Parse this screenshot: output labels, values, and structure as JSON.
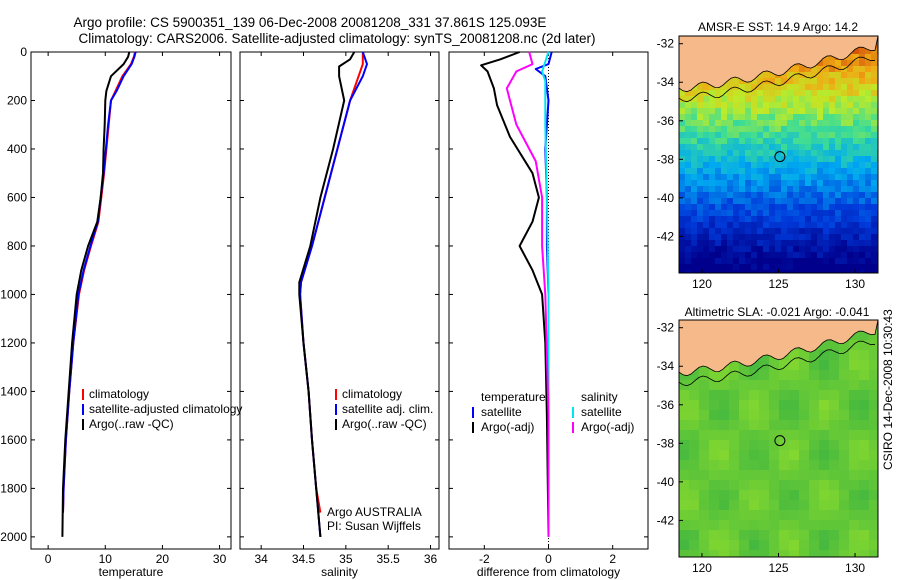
{
  "header": {
    "line1": "Argo profile: CS 5900351_139 06-Dec-2008 20081208_331 37.861S 125.093E",
    "line2": "Climatology: CARS2006. Satellite-adjusted climatology: synTS_20081208.nc (2d later)"
  },
  "side_label": "CSIRO 14-Dec-2008 10:30:43",
  "chart_data": [
    {
      "type": "line",
      "xlabel": "temperature",
      "xlim": [
        -3,
        32
      ],
      "ylim": [
        2050,
        0
      ],
      "x_ticks": [
        "0",
        "10",
        "20",
        "30"
      ],
      "y_ticks": [
        "0",
        "200",
        "400",
        "600",
        "800",
        "1000",
        "1200",
        "1400",
        "1600",
        "1800",
        "2000"
      ],
      "legend": [
        "climatology",
        "satellite-adjusted climatology",
        "Argo(..raw -QC)"
      ],
      "series": [
        {
          "name": "climatology",
          "color": "#ff0000",
          "points": [
            [
              15.2,
              0
            ],
            [
              15.0,
              20
            ],
            [
              14.5,
              50
            ],
            [
              13.0,
              100
            ],
            [
              11.8,
              160
            ],
            [
              11.0,
              200
            ],
            [
              10.6,
              300
            ],
            [
              10.2,
              400
            ],
            [
              9.8,
              500
            ],
            [
              9.3,
              600
            ],
            [
              8.8,
              700
            ],
            [
              7.5,
              800
            ],
            [
              6.3,
              900
            ],
            [
              5.4,
              1000
            ],
            [
              4.4,
              1200
            ],
            [
              3.7,
              1400
            ],
            [
              3.1,
              1600
            ],
            [
              2.7,
              1800
            ],
            [
              2.6,
              1900
            ]
          ]
        },
        {
          "name": "satellite-adjusted climatology",
          "color": "#0000ff",
          "points": [
            [
              15.3,
              0
            ],
            [
              15.1,
              20
            ],
            [
              14.6,
              50
            ],
            [
              13.2,
              100
            ],
            [
              12.0,
              160
            ],
            [
              11.0,
              200
            ],
            [
              10.5,
              300
            ],
            [
              10.1,
              400
            ],
            [
              9.7,
              500
            ],
            [
              9.2,
              600
            ],
            [
              8.7,
              700
            ],
            [
              7.4,
              800
            ],
            [
              6.2,
              900
            ],
            [
              5.3,
              1000
            ],
            [
              4.4,
              1200
            ],
            [
              3.7,
              1400
            ],
            [
              3.1,
              1600
            ],
            [
              2.7,
              1800
            ],
            [
              2.6,
              1900
            ]
          ]
        },
        {
          "name": "Argo(..raw -QC)",
          "color": "#000000",
          "points": [
            [
              14.2,
              0
            ],
            [
              14.0,
              20
            ],
            [
              13.2,
              50
            ],
            [
              11.0,
              100
            ],
            [
              10.2,
              160
            ],
            [
              10.0,
              200
            ],
            [
              9.9,
              300
            ],
            [
              9.7,
              400
            ],
            [
              9.6,
              500
            ],
            [
              9.2,
              600
            ],
            [
              8.6,
              700
            ],
            [
              7.0,
              800
            ],
            [
              5.8,
              900
            ],
            [
              5.0,
              1000
            ],
            [
              4.2,
              1200
            ],
            [
              3.6,
              1400
            ],
            [
              3.0,
              1600
            ],
            [
              2.6,
              1800
            ],
            [
              2.5,
              2000
            ]
          ]
        }
      ]
    },
    {
      "type": "line",
      "xlabel": "salinity",
      "xlim": [
        33.75,
        36.1
      ],
      "ylim": [
        2050,
        0
      ],
      "x_ticks": [
        "34",
        "34.5",
        "35",
        "35.5",
        "36"
      ],
      "legend": [
        "climatology",
        "satellite adj. clim.",
        "Argo(..raw -QC)"
      ],
      "annotation": [
        "Argo AUSTRALIA",
        "PI: Susan Wijffels"
      ],
      "series": [
        {
          "name": "climatology",
          "color": "#ff0000",
          "points": [
            [
              35.2,
              0
            ],
            [
              35.2,
              50
            ],
            [
              35.15,
              100
            ],
            [
              35.05,
              200
            ],
            [
              34.9,
              400
            ],
            [
              34.75,
              600
            ],
            [
              34.6,
              800
            ],
            [
              34.47,
              950
            ],
            [
              34.46,
              1000
            ],
            [
              34.5,
              1200
            ],
            [
              34.56,
              1400
            ],
            [
              34.6,
              1600
            ],
            [
              34.65,
              1800
            ],
            [
              34.7,
              1900
            ]
          ]
        },
        {
          "name": "satellite adj. clim.",
          "color": "#0000ff",
          "points": [
            [
              35.2,
              0
            ],
            [
              35.25,
              50
            ],
            [
              35.2,
              100
            ],
            [
              35.05,
              200
            ],
            [
              34.9,
              400
            ],
            [
              34.75,
              600
            ],
            [
              34.6,
              800
            ],
            [
              34.47,
              950
            ],
            [
              34.46,
              1000
            ],
            [
              34.5,
              1200
            ],
            [
              34.56,
              1400
            ],
            [
              34.6,
              1600
            ],
            [
              34.65,
              1800
            ],
            [
              34.7,
              2000
            ]
          ]
        },
        {
          "name": "Argo(..raw -QC)",
          "color": "#000000",
          "points": [
            [
              35.1,
              0
            ],
            [
              35.05,
              30
            ],
            [
              34.92,
              60
            ],
            [
              34.92,
              100
            ],
            [
              34.98,
              200
            ],
            [
              34.85,
              400
            ],
            [
              34.7,
              600
            ],
            [
              34.58,
              800
            ],
            [
              34.45,
              950
            ],
            [
              34.45,
              1000
            ],
            [
              34.5,
              1200
            ],
            [
              34.56,
              1400
            ],
            [
              34.6,
              1600
            ],
            [
              34.65,
              1800
            ],
            [
              34.7,
              2000
            ]
          ]
        }
      ]
    },
    {
      "type": "line",
      "xlabel": "difference from climatology",
      "xlim": [
        -3.1,
        3.1
      ],
      "ylim": [
        2050,
        0
      ],
      "x_ticks": [
        "-2",
        "0",
        "2"
      ],
      "legend_groups": [
        {
          "heading": "temperature",
          "items": [
            "satellite",
            "Argo(-adj)"
          ]
        },
        {
          "heading": "salinity",
          "items": [
            "satellite",
            "Argo(-adj)"
          ]
        }
      ],
      "series": [
        {
          "name": "temperature satellite",
          "color": "#0000ff",
          "points": [
            [
              0.1,
              0
            ],
            [
              0.0,
              50
            ],
            [
              -0.4,
              70
            ],
            [
              -0.1,
              100
            ],
            [
              0.0,
              200
            ],
            [
              -0.1,
              400
            ],
            [
              -0.05,
              600
            ],
            [
              -0.05,
              800
            ],
            [
              0.0,
              1000
            ],
            [
              0.0,
              1500
            ],
            [
              0.0,
              2000
            ]
          ]
        },
        {
          "name": "temperature Argo(-adj)",
          "color": "#000000",
          "points": [
            [
              -0.9,
              0
            ],
            [
              -1.5,
              30
            ],
            [
              -2.1,
              55
            ],
            [
              -1.9,
              80
            ],
            [
              -1.7,
              150
            ],
            [
              -1.6,
              220
            ],
            [
              -1.2,
              350
            ],
            [
              -0.5,
              500
            ],
            [
              -0.3,
              600
            ],
            [
              -0.5,
              700
            ],
            [
              -0.9,
              800
            ],
            [
              -0.5,
              900
            ],
            [
              -0.2,
              1000
            ],
            [
              -0.1,
              1200
            ],
            [
              -0.05,
              1500
            ],
            [
              0.0,
              2000
            ]
          ]
        },
        {
          "name": "salinity satellite",
          "color": "#00e5ee",
          "points": [
            [
              0.0,
              0
            ],
            [
              -0.1,
              40
            ],
            [
              -0.2,
              80
            ],
            [
              -0.1,
              120
            ],
            [
              -0.1,
              300
            ],
            [
              -0.05,
              600
            ],
            [
              0.0,
              1000
            ],
            [
              0.0,
              1500
            ],
            [
              0.0,
              2000
            ]
          ]
        },
        {
          "name": "salinity Argo(-adj)",
          "color": "#ff00ff",
          "points": [
            [
              -0.6,
              0
            ],
            [
              -0.5,
              50
            ],
            [
              -1.0,
              80
            ],
            [
              -1.3,
              150
            ],
            [
              -1.0,
              300
            ],
            [
              -0.4,
              450
            ],
            [
              -0.2,
              600
            ],
            [
              -0.2,
              800
            ],
            [
              -0.1,
              1000
            ],
            [
              0.0,
              1500
            ],
            [
              0.0,
              2000
            ]
          ]
        }
      ]
    }
  ],
  "maps": [
    {
      "title": "AMSR-E SST: 14.9  Argo: 14.2",
      "kind": "sst",
      "x_ticks": [
        "120",
        "125",
        "130"
      ],
      "y_ticks": [
        "-32",
        "-34",
        "-36",
        "-38",
        "-40",
        "-42"
      ],
      "land_color": "#f5b98a",
      "marker_lon": 125.09,
      "marker_lat": -37.86
    },
    {
      "title": "Altimetric SLA: -0.021  Argo: -0.041",
      "kind": "sla",
      "x_ticks": [
        "120",
        "125",
        "130"
      ],
      "y_ticks": [
        "-32",
        "-34",
        "-36",
        "-38",
        "-40",
        "-42"
      ],
      "land_color": "#f5b98a",
      "marker_lon": 125.09,
      "marker_lat": -37.86
    }
  ]
}
